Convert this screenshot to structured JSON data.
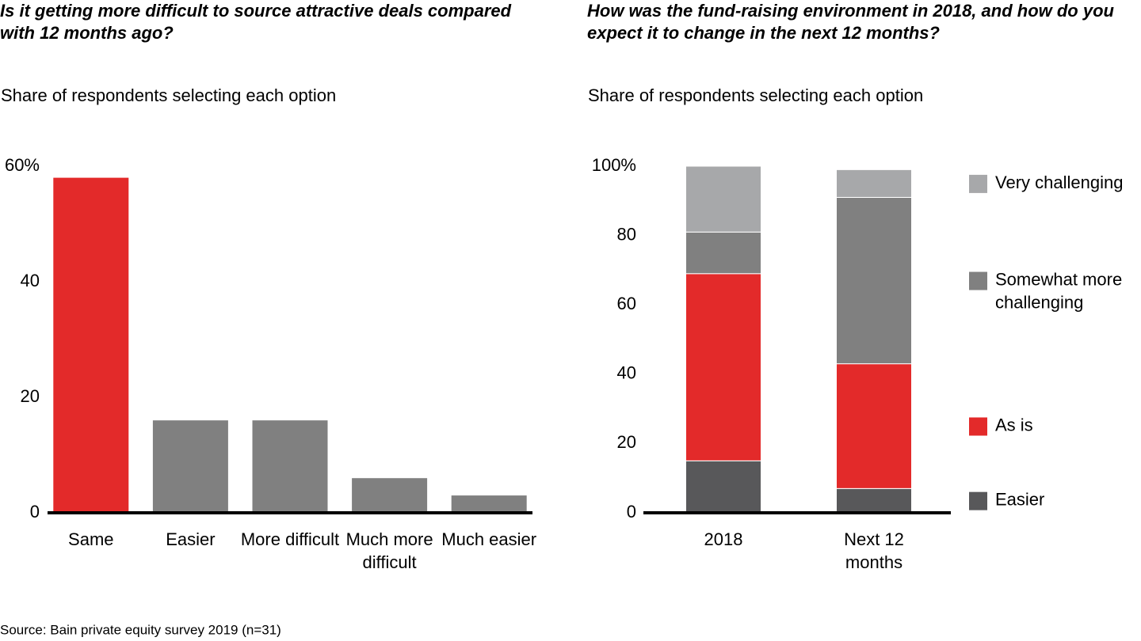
{
  "chart_data": [
    {
      "type": "bar",
      "title": "Is it getting more difficult to source attractive deals compared with 12 months ago?",
      "subtitle": "Share of respondents selecting each option",
      "categories": [
        "Same",
        "Easier",
        "More difficult",
        "Much more difficult",
        "Much easier"
      ],
      "values": [
        58,
        16,
        16,
        6,
        3
      ],
      "colors": [
        "#e32a2a",
        "#808080",
        "#808080",
        "#808080",
        "#808080"
      ],
      "ylim": [
        0,
        60
      ],
      "yticks": [
        0,
        20,
        40,
        {
          "value": 60,
          "label": "60%"
        }
      ]
    },
    {
      "type": "stacked-bar",
      "title": "How was the fund-raising environment in 2018, and how do you expect it to change in the next 12 months?",
      "subtitle": "Share of respondents selecting each option",
      "categories": [
        "2018",
        "Next 12 months"
      ],
      "series": [
        {
          "name": "Easier",
          "color": "#58585a",
          "values": [
            15,
            7
          ]
        },
        {
          "name": "As is",
          "color": "#e32a2a",
          "values": [
            54,
            36
          ]
        },
        {
          "name": "Somewhat more challenging",
          "color": "#808080",
          "values": [
            12,
            48
          ]
        },
        {
          "name": "Very challenging",
          "color": "#a7a8aa",
          "values": [
            19,
            8
          ]
        }
      ],
      "ylim": [
        0,
        100
      ],
      "yticks": [
        0,
        20,
        40,
        60,
        80,
        {
          "value": 100,
          "label": "100%"
        }
      ]
    }
  ],
  "source": "Source: Bain private equity survey 2019 (n=31)"
}
